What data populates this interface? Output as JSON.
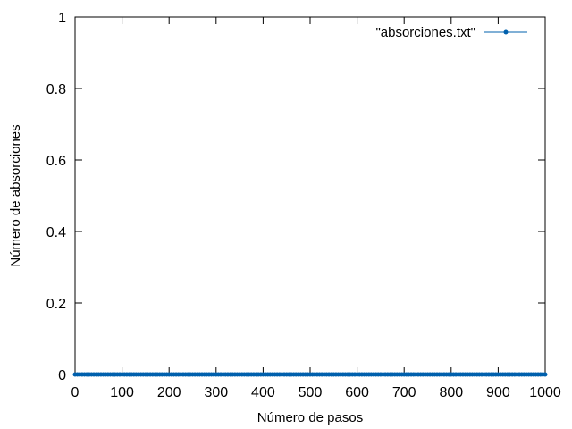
{
  "chart_data": {
    "type": "line",
    "xlabel": "Número de pasos",
    "ylabel": "Número de absorciones",
    "xlim": [
      0,
      1000
    ],
    "ylim": [
      0,
      1
    ],
    "x_ticks": [
      "0",
      "100",
      "200",
      "300",
      "400",
      "500",
      "600",
      "700",
      "800",
      "900",
      "1000"
    ],
    "y_ticks": [
      "0",
      "0.2",
      "0.4",
      "0.6",
      "0.8",
      "1"
    ],
    "grid": false,
    "legend_position": "top-right",
    "series": [
      {
        "name": "\"absorciones.txt\"",
        "style": "linespoints",
        "color": "#0060ad",
        "x_range": [
          0,
          1000
        ],
        "x_step": 5,
        "y_constant": 0
      }
    ]
  }
}
